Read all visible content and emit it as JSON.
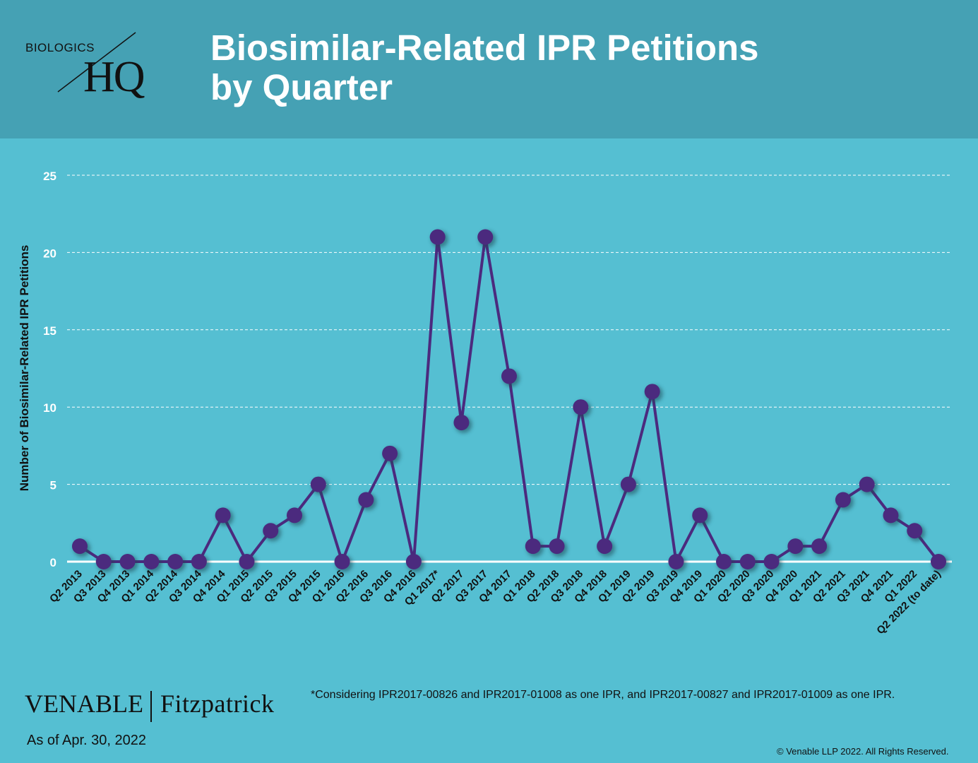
{
  "logo": {
    "top_text": "BIOLOGICS",
    "main_text": "HQ"
  },
  "title_line1": "Biosimilar-Related IPR Petitions",
  "title_line2": "by Quarter",
  "chart_data": {
    "type": "line",
    "title": "Biosimilar-Related IPR Petitions by Quarter",
    "xlabel": "",
    "ylabel": "Number of Biosimilar-Related IPR Petitions",
    "ylim": [
      0,
      25
    ],
    "yticks": [
      0,
      5,
      10,
      15,
      20,
      25
    ],
    "grid": true,
    "categories": [
      "Q2 2013",
      "Q3 2013",
      "Q4 2013",
      "Q1 2014",
      "Q2 2014",
      "Q3 2014",
      "Q4 2014",
      "Q1 2015",
      "Q2 2015",
      "Q3 2015",
      "Q4 2015",
      "Q1 2016",
      "Q2 2016",
      "Q3 2016",
      "Q4 2016",
      "Q1 2017*",
      "Q2 2017",
      "Q3 2017",
      "Q4 2017",
      "Q1 2018",
      "Q2 2018",
      "Q3 2018",
      "Q4 2018",
      "Q1 2019",
      "Q2 2019",
      "Q3 2019",
      "Q4 2019",
      "Q1 2020",
      "Q2 2020",
      "Q3 2020",
      "Q4 2020",
      "Q1 2021",
      "Q2 2021",
      "Q3 2021",
      "Q4 2021",
      "Q1 2022",
      "Q2 2022 (to date)"
    ],
    "values": [
      1,
      0,
      0,
      0,
      0,
      0,
      3,
      0,
      2,
      3,
      5,
      0,
      4,
      7,
      0,
      21,
      9,
      21,
      12,
      1,
      1,
      10,
      1,
      5,
      11,
      0,
      3,
      0,
      0,
      0,
      1,
      1,
      4,
      5,
      3,
      2,
      0
    ],
    "colors": {
      "line": "#4B2A7E",
      "marker": "#4B2A7E",
      "grid": "#FFFFFF",
      "zero_line": "#FFFFFF"
    }
  },
  "footnote": "*Considering IPR2017-00826 and IPR2017-01008 as one IPR, and IPR2017-00827 and IPR2017-01009 as one IPR.",
  "brand": {
    "venable": "VENABLE",
    "fitzpatrick": "Fitzpatrick"
  },
  "as_of": "As of Apr. 30, 2022",
  "copyright": "© Venable LLP 2022. All Rights Reserved."
}
